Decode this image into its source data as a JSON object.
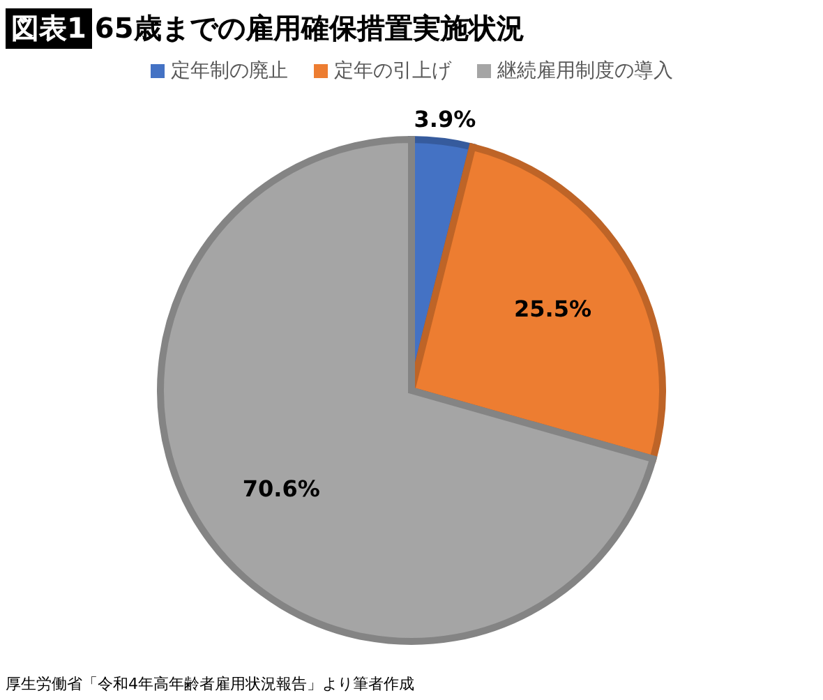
{
  "chart_data": {
    "type": "pie",
    "title": "65歳までの雇用確保措置実施状況",
    "categories": [
      "定年制の廃止",
      "定年の引上げ",
      "継続雇用制度の導入"
    ],
    "values": [
      3.9,
      25.5,
      70.6
    ],
    "value_labels": [
      "3.9%",
      "25.5%",
      "70.6%"
    ],
    "colors": [
      "#4472c4",
      "#ed7d31",
      "#a5a5a5"
    ],
    "legend": "top",
    "annotations": [
      "図表1",
      "厚生労働省「令和4年高年齢者雇用状況報告」より筆者作成"
    ]
  }
}
